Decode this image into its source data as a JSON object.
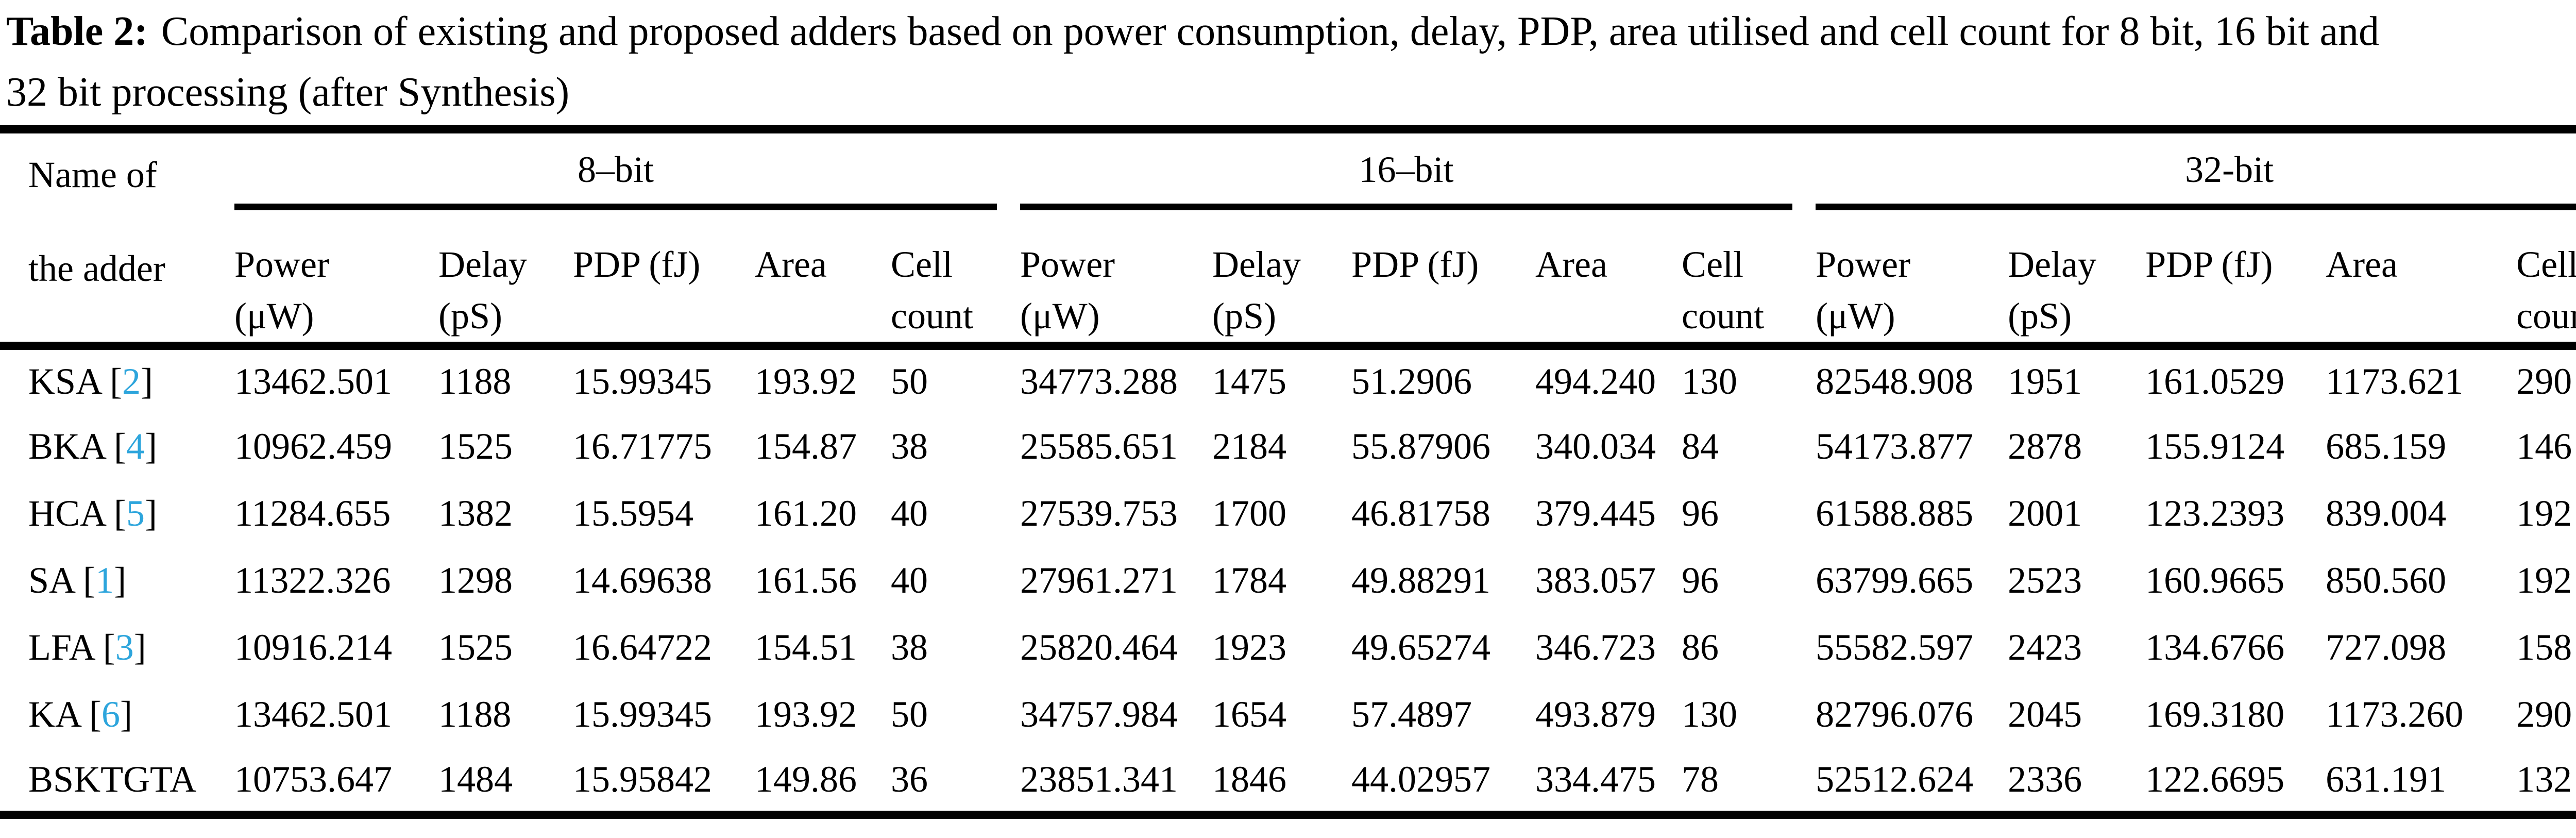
{
  "caption": {
    "label": "Table 2:",
    "line1": "Comparison of existing and proposed adders based on power consumption, delay, PDP, area utilised and cell count for 8 bit, 16 bit and",
    "line2": "32 bit processing (after Synthesis)"
  },
  "header": {
    "name_line1": "Name of",
    "name_line2": "the adder",
    "groups": [
      {
        "label": "8–bit"
      },
      {
        "label": "16–bit"
      },
      {
        "label": "32-bit"
      }
    ],
    "subheaders": [
      {
        "line1": "Power",
        "line2": "(μW)"
      },
      {
        "line1": "Delay",
        "line2": "(pS)"
      },
      {
        "line1": "PDP (fJ)",
        "line2": ""
      },
      {
        "line1": "Area",
        "line2": ""
      },
      {
        "line1": "Cell",
        "line2": "count"
      }
    ]
  },
  "rows": [
    {
      "name": "KSA",
      "ref": "2",
      "bit8": [
        "13462.501",
        "1188",
        "15.99345",
        "193.92",
        "50"
      ],
      "bit16": [
        "34773.288",
        "1475",
        "51.2906",
        "494.240",
        "130"
      ],
      "bit32": [
        "82548.908",
        "1951",
        "161.0529",
        "1173.621",
        "290"
      ]
    },
    {
      "name": "BKA",
      "ref": "4",
      "bit8": [
        "10962.459",
        "1525",
        "16.71775",
        "154.87",
        "38"
      ],
      "bit16": [
        "25585.651",
        "2184",
        "55.87906",
        "340.034",
        "84"
      ],
      "bit32": [
        "54173.877",
        "2878",
        "155.9124",
        "685.159",
        "146"
      ]
    },
    {
      "name": "HCA",
      "ref": "5",
      "bit8": [
        "11284.655",
        "1382",
        "15.5954",
        "161.20",
        "40"
      ],
      "bit16": [
        "27539.753",
        "1700",
        "46.81758",
        "379.445",
        "96"
      ],
      "bit32": [
        "61588.885",
        "2001",
        "123.2393",
        "839.004",
        "192"
      ]
    },
    {
      "name": "SA",
      "ref": "1",
      "bit8": [
        "11322.326",
        "1298",
        "14.69638",
        "161.56",
        "40"
      ],
      "bit16": [
        "27961.271",
        "1784",
        "49.88291",
        "383.057",
        "96"
      ],
      "bit32": [
        "63799.665",
        "2523",
        "160.9665",
        "850.560",
        "192"
      ]
    },
    {
      "name": "LFA",
      "ref": "3",
      "bit8": [
        "10916.214",
        "1525",
        "16.64722",
        "154.51",
        "38"
      ],
      "bit16": [
        "25820.464",
        "1923",
        "49.65274",
        "346.723",
        "86"
      ],
      "bit32": [
        "55582.597",
        "2423",
        "134.6766",
        "727.098",
        "158"
      ]
    },
    {
      "name": "KA",
      "ref": "6",
      "bit8": [
        "13462.501",
        "1188",
        "15.99345",
        "193.92",
        "50"
      ],
      "bit16": [
        "34757.984",
        "1654",
        "57.4897",
        "493.879",
        "130"
      ],
      "bit32": [
        "82796.076",
        "2045",
        "169.3180",
        "1173.260",
        "290"
      ]
    },
    {
      "name": "BSKTGTA",
      "ref": null,
      "bit8": [
        "10753.647",
        "1484",
        "15.95842",
        "149.86",
        "36"
      ],
      "bit16": [
        "23851.341",
        "1846",
        "44.02957",
        "334.475",
        "78"
      ],
      "bit32": [
        "52512.624",
        "2336",
        "122.6695",
        "631.191",
        "132"
      ]
    }
  ],
  "colors": {
    "citation_blue": "#2da5dc",
    "text": "#000000",
    "background": "#ffffff"
  }
}
